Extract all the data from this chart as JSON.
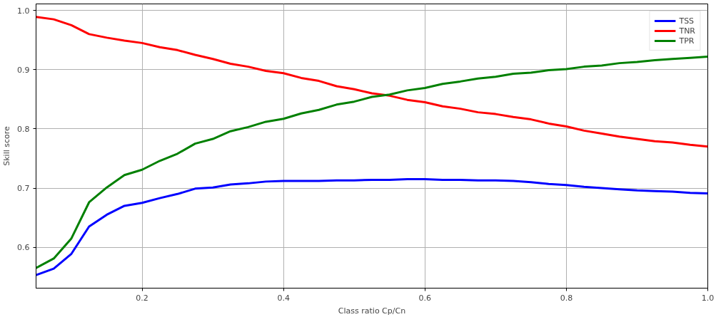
{
  "chart_data": {
    "type": "line",
    "xlabel": "Class ratio Cp/Cn",
    "ylabel": "Skill score",
    "x": [
      0.05,
      0.075,
      0.1,
      0.125,
      0.15,
      0.175,
      0.2,
      0.225,
      0.25,
      0.275,
      0.3,
      0.325,
      0.35,
      0.375,
      0.4,
      0.425,
      0.45,
      0.475,
      0.5,
      0.525,
      0.55,
      0.575,
      0.6,
      0.625,
      0.65,
      0.675,
      0.7,
      0.725,
      0.75,
      0.775,
      0.8,
      0.825,
      0.85,
      0.875,
      0.9,
      0.925,
      0.95,
      0.975,
      1.0
    ],
    "series": [
      {
        "name": "TSS",
        "color": "#0000ff",
        "values": [
          0.553,
          0.564,
          0.589,
          0.635,
          0.655,
          0.67,
          0.675,
          0.683,
          0.69,
          0.699,
          0.701,
          0.706,
          0.708,
          0.711,
          0.712,
          0.712,
          0.712,
          0.713,
          0.713,
          0.714,
          0.714,
          0.715,
          0.715,
          0.714,
          0.714,
          0.713,
          0.713,
          0.712,
          0.71,
          0.707,
          0.705,
          0.702,
          0.7,
          0.698,
          0.696,
          0.695,
          0.694,
          0.692,
          0.691
        ]
      },
      {
        "name": "TNR",
        "color": "#ff0000",
        "values": [
          0.989,
          0.985,
          0.975,
          0.96,
          0.954,
          0.949,
          0.945,
          0.938,
          0.933,
          0.925,
          0.918,
          0.91,
          0.905,
          0.898,
          0.894,
          0.886,
          0.881,
          0.872,
          0.867,
          0.86,
          0.856,
          0.849,
          0.845,
          0.838,
          0.834,
          0.828,
          0.825,
          0.82,
          0.816,
          0.809,
          0.804,
          0.797,
          0.792,
          0.787,
          0.783,
          0.779,
          0.777,
          0.773,
          0.77
        ]
      },
      {
        "name": "TPR",
        "color": "#008000",
        "values": [
          0.565,
          0.581,
          0.615,
          0.676,
          0.701,
          0.722,
          0.731,
          0.746,
          0.758,
          0.775,
          0.783,
          0.796,
          0.803,
          0.812,
          0.817,
          0.826,
          0.832,
          0.841,
          0.846,
          0.854,
          0.858,
          0.865,
          0.869,
          0.876,
          0.88,
          0.885,
          0.888,
          0.893,
          0.895,
          0.899,
          0.901,
          0.905,
          0.907,
          0.911,
          0.913,
          0.916,
          0.918,
          0.92,
          0.922
        ]
      }
    ],
    "xlim": [
      0.05,
      1.0
    ],
    "ylim": [
      0.531,
      1.011
    ],
    "xticks": [
      0.2,
      0.4,
      0.6,
      0.8,
      {
        "value": 1,
        "label": "1.0"
      }
    ],
    "yticks": [
      0.6,
      0.7,
      0.8,
      0.9,
      {
        "value": 1,
        "label": "1.0"
      }
    ],
    "grid": true,
    "legend": "top right",
    "line_style": "solid"
  }
}
